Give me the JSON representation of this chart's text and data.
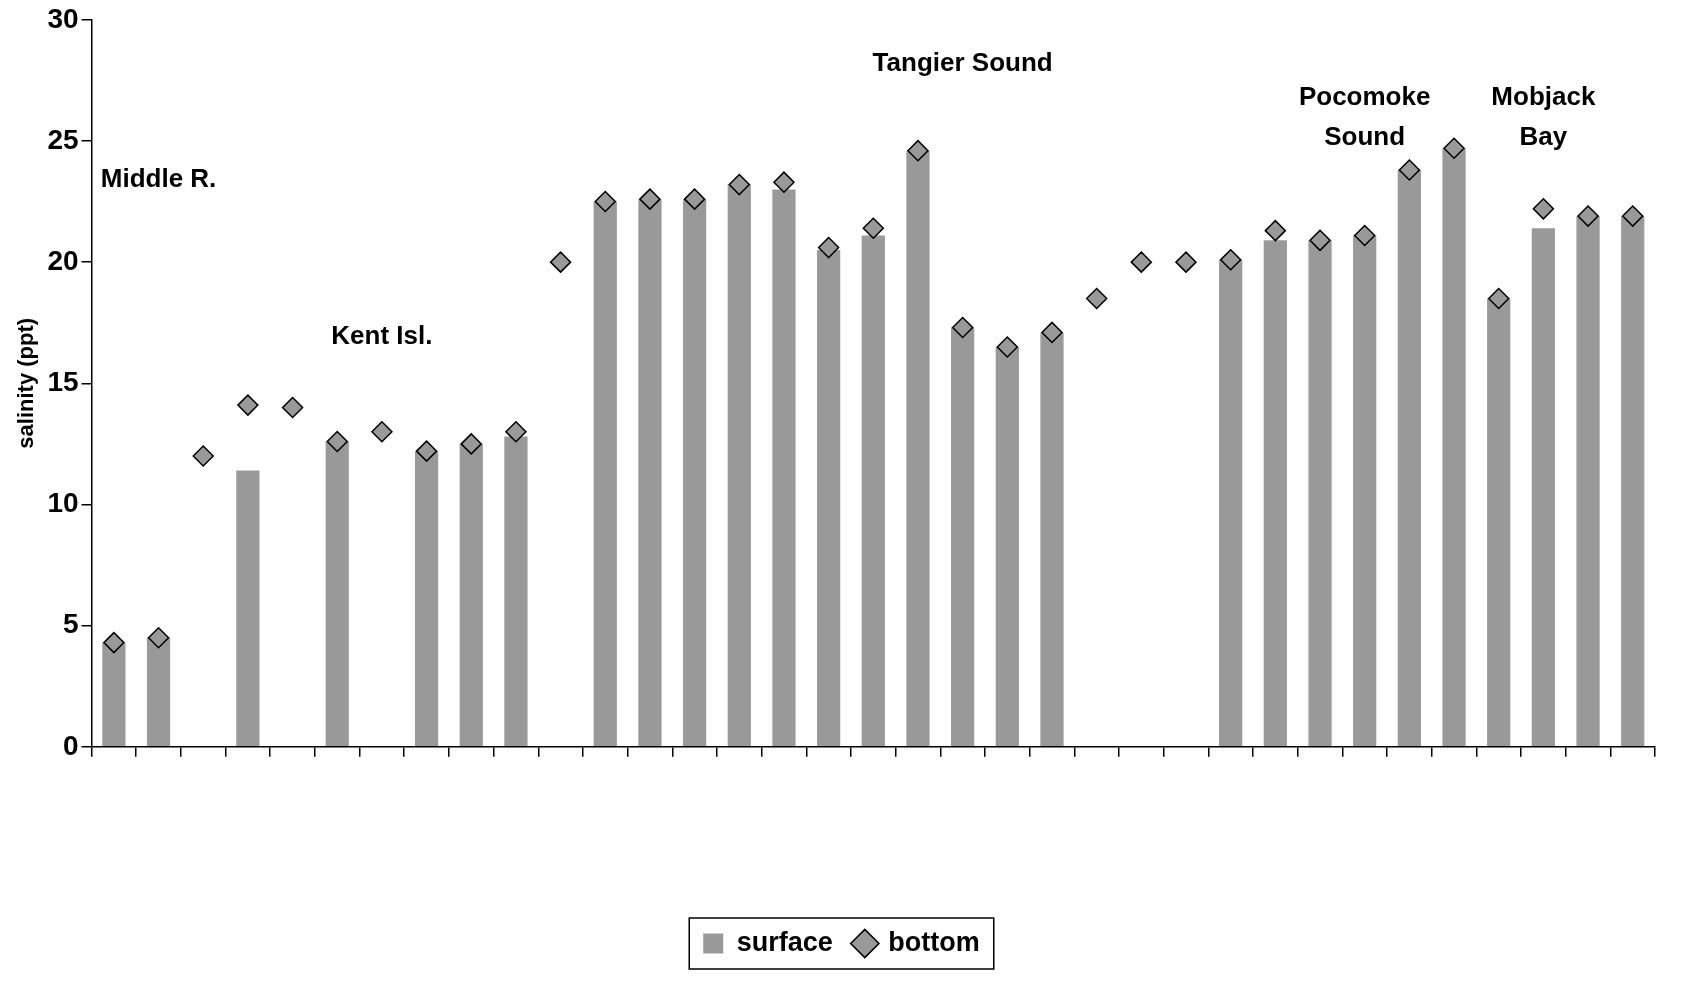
{
  "chart_data": {
    "type": "bar",
    "ylabel": "salinity (ppt)",
    "categories": [
      null,
      null,
      null,
      null,
      null,
      null,
      null,
      null,
      null,
      null,
      null,
      null,
      null,
      null,
      null,
      null,
      null,
      null,
      null,
      null,
      null,
      null,
      null,
      null,
      null,
      null,
      null,
      null,
      null,
      null,
      null,
      null,
      null,
      null,
      null
    ],
    "series": [
      {
        "name": "surface",
        "color": "#999999",
        "values": [
          4.3,
          4.5,
          null,
          11.4,
          null,
          12.6,
          null,
          12.2,
          12.5,
          12.8,
          null,
          22.5,
          22.6,
          22.6,
          23.2,
          23.0,
          20.5,
          21.1,
          24.6,
          17.3,
          16.5,
          17.1,
          null,
          null,
          null,
          20.1,
          20.9,
          20.9,
          21.1,
          23.8,
          24.7,
          18.5,
          21.4,
          21.9,
          21.9
        ]
      },
      {
        "name": "bottom",
        "type": "scatter",
        "marker": "diamond",
        "color": "#999999",
        "values": [
          4.3,
          4.5,
          12.0,
          14.1,
          14.0,
          12.6,
          13.0,
          12.2,
          12.5,
          13.0,
          20.0,
          22.5,
          22.6,
          22.6,
          23.2,
          23.3,
          20.6,
          21.4,
          24.6,
          17.3,
          16.5,
          17.1,
          18.5,
          20.0,
          20.0,
          20.1,
          21.3,
          20.9,
          21.1,
          23.8,
          24.7,
          18.5,
          22.2,
          21.9,
          21.9
        ]
      }
    ],
    "ylim": [
      0,
      30
    ],
    "yticks": [
      0,
      5,
      10,
      15,
      20,
      25,
      30
    ],
    "grid": false,
    "legend": "bottom",
    "annotations": [
      "Middle R.",
      "Kent Isl.",
      "Tangier Sound",
      "Pocomoke Sound",
      "Mobjack Bay"
    ]
  }
}
